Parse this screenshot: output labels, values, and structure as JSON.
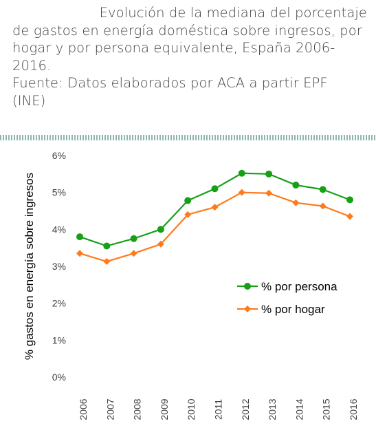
{
  "caption": {
    "line1": "Evolución de la mediana del porcentaje",
    "line2": "de gastos en energía doméstica sobre ingresos, por",
    "line3": "hogar y por persona equivalente, España 2006-",
    "line4": "2016.",
    "line5": "Fuente: Datos elaborados por ACA a partir EPF",
    "line6": "(INE)"
  },
  "colors": {
    "persona": "#16a016",
    "hogar": "#ff7a1a",
    "text": "#404040"
  },
  "chart_data": {
    "type": "line",
    "x": [
      "2006",
      "2007",
      "2008",
      "2009",
      "2010",
      "2011",
      "2012",
      "2013",
      "2014",
      "2015",
      "2016"
    ],
    "y_ticks": [
      "0%",
      "1%",
      "2%",
      "3%",
      "4%",
      "5%",
      "6%"
    ],
    "ylabel": "% gastos en energía sobre ingresos",
    "ylim": [
      0,
      6
    ],
    "grid": false,
    "legend_position": "center-right",
    "series": [
      {
        "name": "% por persona",
        "marker": "circle",
        "color": "#16a016",
        "values": [
          3.8,
          3.55,
          3.75,
          4.0,
          4.78,
          5.1,
          5.52,
          5.5,
          5.2,
          5.08,
          4.8
        ]
      },
      {
        "name": "% por hogar",
        "marker": "diamond",
        "color": "#ff7a1a",
        "values": [
          3.35,
          3.13,
          3.35,
          3.6,
          4.4,
          4.6,
          5.0,
          4.98,
          4.72,
          4.63,
          4.35
        ]
      }
    ]
  }
}
